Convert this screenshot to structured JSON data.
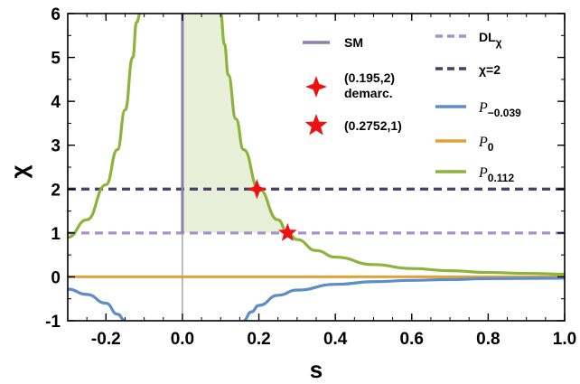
{
  "chart_data": {
    "type": "line",
    "xlabel": "s",
    "ylabel": "χ",
    "xlim": [
      -0.3,
      1.0
    ],
    "ylim": [
      -1,
      6
    ],
    "xticks": [
      "-0.2",
      "0.0",
      "0.2",
      "0.4",
      "0.6",
      "0.8",
      "1.0"
    ],
    "xtick_values": [
      -0.2,
      0.0,
      0.2,
      0.4,
      0.6,
      0.8,
      1.0
    ],
    "yticks": [
      "-1",
      "0",
      "1",
      "2",
      "3",
      "4",
      "5",
      "6"
    ],
    "ytick_values": [
      -1,
      0,
      1,
      2,
      3,
      4,
      5,
      6
    ],
    "grid": false,
    "legend_position": "top-right (inside)",
    "series": [
      {
        "name": "SM",
        "kind": "vertical-segment",
        "x": 0.0,
        "y_from": 1,
        "y_to": 6,
        "color": "#8c7fad"
      },
      {
        "name": "DLχ",
        "kind": "horizontal-dashed",
        "y": 1,
        "color": "#a893c8"
      },
      {
        "name": "χ=2",
        "kind": "horizontal-dashed",
        "y": 2,
        "color": "#4a3d69"
      },
      {
        "name": "P−0.039",
        "kind": "curve",
        "param": -0.039,
        "color": "#5d8dc6",
        "x": [
          -0.3,
          -0.25,
          -0.2,
          -0.17,
          -0.15,
          0.16,
          0.18,
          0.2,
          0.25,
          0.3,
          0.4,
          0.5,
          0.6,
          0.7,
          0.8,
          0.9,
          1.0
        ],
        "y": [
          -0.28,
          -0.4,
          -0.6,
          -0.85,
          -1.0,
          -1.0,
          -0.8,
          -0.65,
          -0.42,
          -0.3,
          -0.17,
          -0.11,
          -0.08,
          -0.06,
          -0.04,
          -0.035,
          -0.03
        ]
      },
      {
        "name": "P0",
        "kind": "horizontal",
        "y": 0,
        "color": "#e2a237"
      },
      {
        "name": "P0.112",
        "kind": "curve",
        "param": 0.112,
        "color": "#8cb43c",
        "x": [
          -0.3,
          -0.25,
          -0.2,
          -0.17,
          -0.15,
          -0.13,
          -0.12,
          -0.11,
          0.1,
          0.11,
          0.12,
          0.14,
          0.16,
          0.2,
          0.25,
          0.2752,
          0.3,
          0.35,
          0.4,
          0.5,
          0.6,
          0.7,
          0.8,
          0.9,
          1.0
        ],
        "y": [
          0.9,
          1.3,
          2.1,
          2.9,
          3.8,
          5.0,
          5.8,
          6.0,
          6.0,
          5.3,
          4.6,
          3.6,
          2.9,
          2.0,
          1.3,
          1.0,
          0.85,
          0.6,
          0.45,
          0.28,
          0.19,
          0.14,
          0.1,
          0.08,
          0.06
        ]
      }
    ],
    "shaded_region": {
      "x_from": 0.0,
      "x_to": 0.2752,
      "y_from": 1,
      "y_upper": "P0.112",
      "color": "#e9f0d9"
    },
    "markers": [
      {
        "label": "(0.195,2)",
        "label2": "demarc.",
        "x": 0.195,
        "y": 2,
        "symbol": "star4",
        "color": "#ee1111"
      },
      {
        "label": "(0.2752,1)",
        "x": 0.2752,
        "y": 1,
        "symbol": "star5",
        "color": "#ee1111"
      }
    ],
    "legend_left": [
      {
        "kind": "line",
        "label": "SM",
        "series": 0
      },
      {
        "kind": "marker",
        "label": "(0.195,2)",
        "label2": "demarc.",
        "marker": 0
      },
      {
        "kind": "marker",
        "label": "(0.2752,1)",
        "marker": 1
      }
    ],
    "legend_right": [
      {
        "label_main": "DL",
        "label_sub": "χ",
        "math": false,
        "series": 1
      },
      {
        "label_main": "χ=2",
        "label_sub": "",
        "math": false,
        "series": 2
      },
      {
        "label_main": "P",
        "label_sub": "−0.039",
        "math": true,
        "series": 3
      },
      {
        "label_main": "P",
        "label_sub": "0",
        "math": true,
        "series": 4
      },
      {
        "label_main": "P",
        "label_sub": "0.112",
        "math": true,
        "series": 5
      }
    ]
  }
}
